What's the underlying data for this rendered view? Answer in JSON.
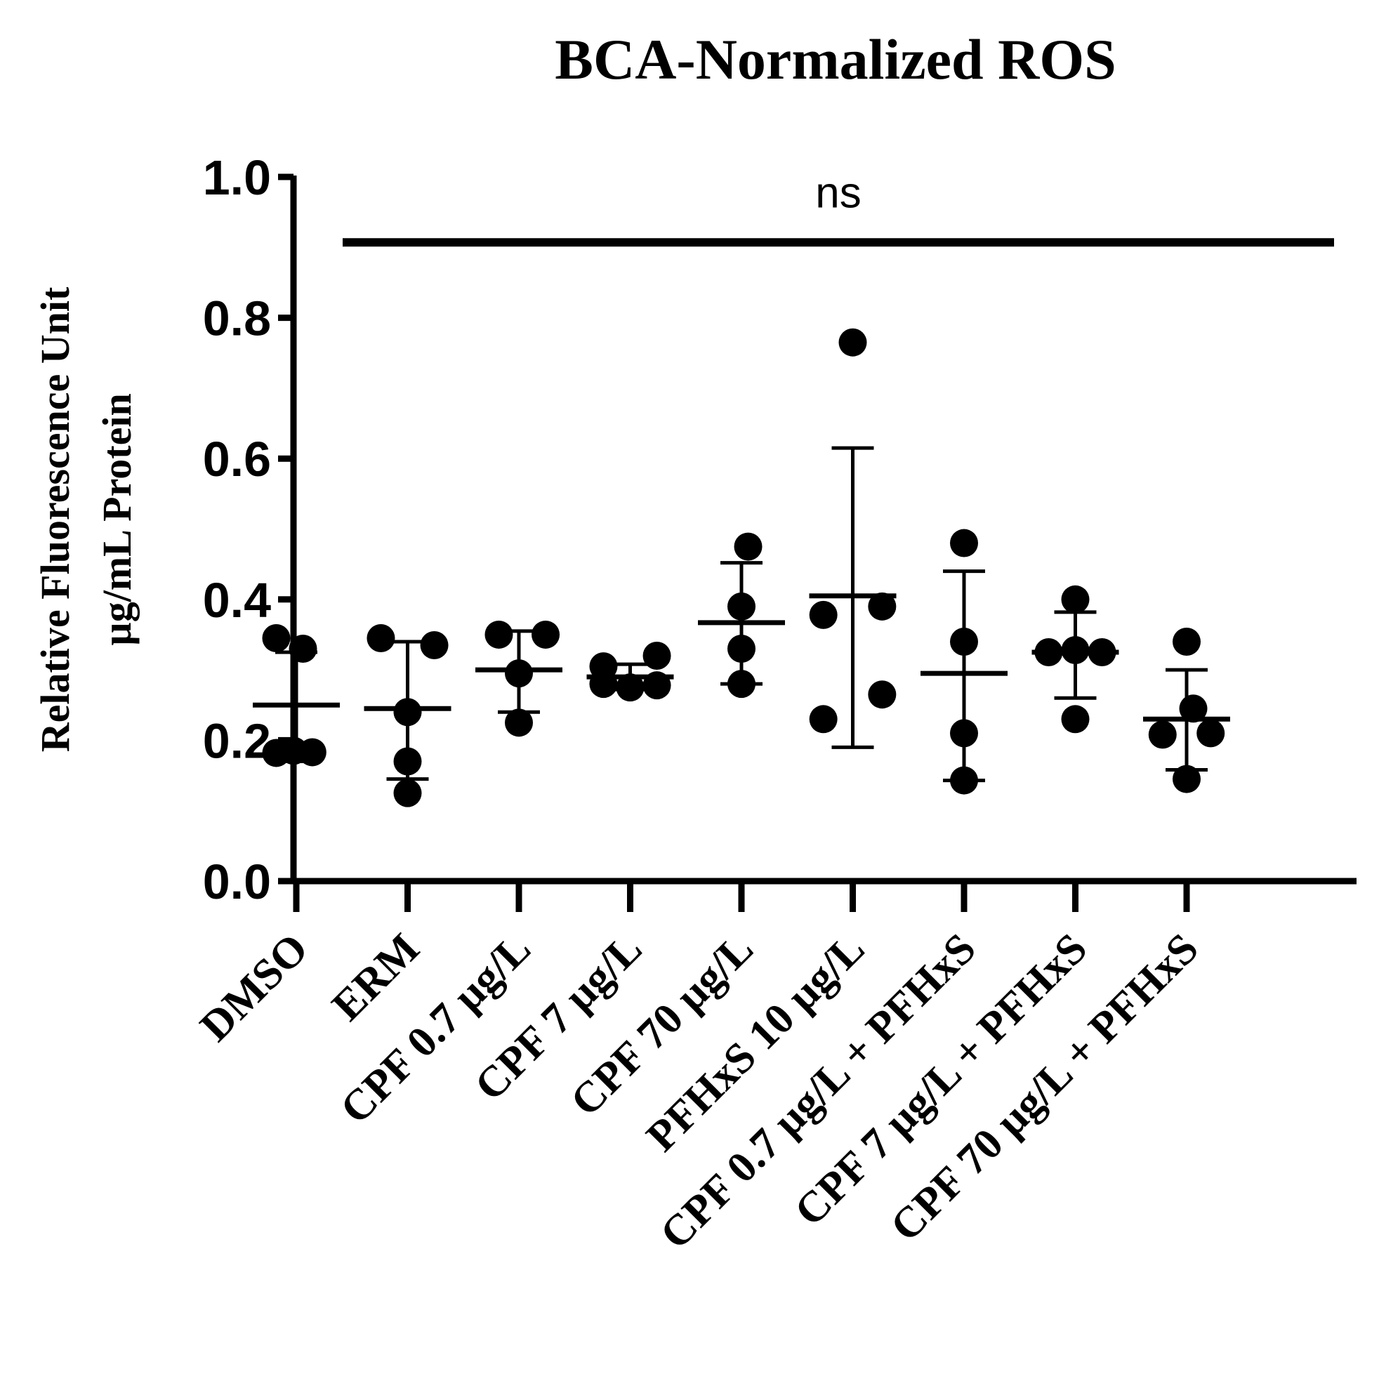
{
  "chart_data": {
    "type": "scatter",
    "title": "BCA-Normalized ROS",
    "ylabel_lines": [
      "Relative Fluorescence Unit",
      "µg/mL Protein"
    ],
    "ylim": [
      0,
      1.0
    ],
    "yticks": [
      "0.0",
      "0.2",
      "0.4",
      "0.6",
      "0.8",
      "1.0"
    ],
    "grid": false,
    "categories": [
      "DMSO",
      "ERM",
      "CPF 0.7 µg/L",
      "CPF 7 µg/L",
      "CPF 70 µg/L",
      "PFHxS 10 µg/L",
      "CPF 0.7 µg/L + PFHxS",
      "CPF 7 µg/L + PFHxS",
      "CPF 70 µg/L + PFHxS"
    ],
    "groups": [
      {
        "points": [
          0.345,
          0.33,
          0.183,
          0.182,
          0.185
        ],
        "mean": 0.25,
        "sd_low": 0.17,
        "sd_high": 0.325
      },
      {
        "points": [
          0.345,
          0.335,
          0.24,
          0.17,
          0.125
        ],
        "mean": 0.245,
        "sd_low": 0.145,
        "sd_high": 0.34
      },
      {
        "points": [
          0.35,
          0.35,
          0.295,
          0.225
        ],
        "mean": 0.3,
        "sd_low": 0.24,
        "sd_high": 0.355
      },
      {
        "points": [
          0.305,
          0.28,
          0.275,
          0.278,
          0.32
        ],
        "mean": 0.29,
        "sd_low": 0.272,
        "sd_high": 0.308
      },
      {
        "points": [
          0.475,
          0.39,
          0.33,
          0.28
        ],
        "mean": 0.367,
        "sd_low": 0.28,
        "sd_high": 0.452
      },
      {
        "points": [
          0.765,
          0.378,
          0.39,
          0.265,
          0.23
        ],
        "mean": 0.405,
        "sd_low": 0.19,
        "sd_high": 0.615
      },
      {
        "points": [
          0.48,
          0.34,
          0.21,
          0.143
        ],
        "mean": 0.295,
        "sd_low": 0.143,
        "sd_high": 0.44
      },
      {
        "points": [
          0.4,
          0.325,
          0.328,
          0.325,
          0.23
        ],
        "mean": 0.325,
        "sd_low": 0.26,
        "sd_high": 0.382
      },
      {
        "points": [
          0.34,
          0.245,
          0.21,
          0.208,
          0.145
        ],
        "mean": 0.23,
        "sd_low": 0.158,
        "sd_high": 0.3
      }
    ],
    "annotation": {
      "text": "ns",
      "y": 0.907
    }
  }
}
